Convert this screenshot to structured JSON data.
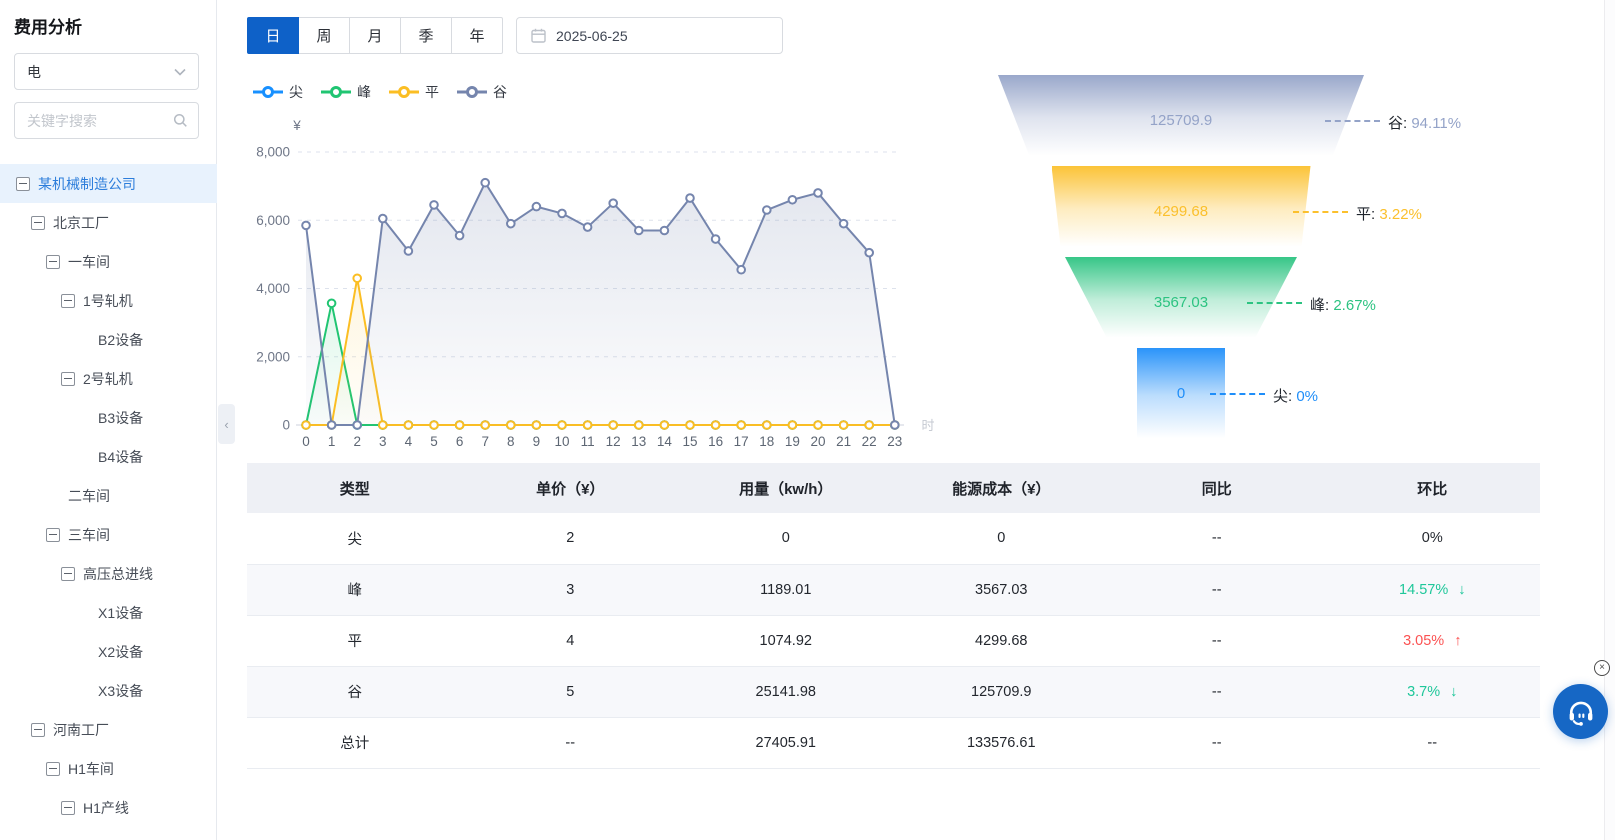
{
  "sidebar": {
    "title": "费用分析",
    "energy_select": {
      "value": "电"
    },
    "search": {
      "placeholder": "关键字搜索"
    },
    "tree": [
      {
        "label": "某机械制造公司",
        "level": 0,
        "expandable": true,
        "selected": true
      },
      {
        "label": "北京工厂",
        "level": 1,
        "expandable": true,
        "selected": false
      },
      {
        "label": "一车间",
        "level": 2,
        "expandable": true,
        "selected": false
      },
      {
        "label": "1号轧机",
        "level": 3,
        "expandable": true,
        "selected": false
      },
      {
        "label": "B2设备",
        "level": 4,
        "expandable": false,
        "selected": false
      },
      {
        "label": "2号轧机",
        "level": 3,
        "expandable": true,
        "selected": false
      },
      {
        "label": "B3设备",
        "level": 4,
        "expandable": false,
        "selected": false
      },
      {
        "label": "B4设备",
        "level": 4,
        "expandable": false,
        "selected": false
      },
      {
        "label": "二车间",
        "level": 2,
        "expandable": false,
        "selected": false
      },
      {
        "label": "三车间",
        "level": 2,
        "expandable": true,
        "selected": false
      },
      {
        "label": "高压总进线",
        "level": 3,
        "expandable": true,
        "selected": false
      },
      {
        "label": "X1设备",
        "level": 4,
        "expandable": false,
        "selected": false
      },
      {
        "label": "X2设备",
        "level": 4,
        "expandable": false,
        "selected": false
      },
      {
        "label": "X3设备",
        "level": 4,
        "expandable": false,
        "selected": false
      },
      {
        "label": "河南工厂",
        "level": 1,
        "expandable": true,
        "selected": false
      },
      {
        "label": "H1车间",
        "level": 2,
        "expandable": true,
        "selected": false
      },
      {
        "label": "H1产线",
        "level": 3,
        "expandable": true,
        "selected": false
      }
    ]
  },
  "toolbar": {
    "period_tabs": [
      "日",
      "周",
      "月",
      "季",
      "年"
    ],
    "active_tab": "日",
    "date_value": "2025-06-25"
  },
  "chart_data": [
    {
      "type": "line",
      "title": "",
      "xlabel": "时",
      "ylabel": "¥",
      "ylim": [
        0,
        8000
      ],
      "yticks": [
        0,
        2000,
        4000,
        6000,
        8000
      ],
      "grid": true,
      "legend_position": "top",
      "x": [
        0,
        1,
        2,
        3,
        4,
        5,
        6,
        7,
        8,
        9,
        10,
        11,
        12,
        13,
        14,
        15,
        16,
        17,
        18,
        19,
        20,
        21,
        22,
        23
      ],
      "series": [
        {
          "name": "尖",
          "color": "#1890ff",
          "values": [
            0,
            0,
            0,
            0,
            0,
            0,
            0,
            0,
            0,
            0,
            0,
            0,
            0,
            0,
            0,
            0,
            0,
            0,
            0,
            0,
            0,
            0,
            0,
            0
          ]
        },
        {
          "name": "峰",
          "color": "#20c572",
          "values": [
            0,
            3567.03,
            0,
            0,
            0,
            0,
            0,
            0,
            0,
            0,
            0,
            0,
            0,
            0,
            0,
            0,
            0,
            0,
            0,
            0,
            0,
            0,
            0,
            0
          ]
        },
        {
          "name": "平",
          "color": "#fbbe23",
          "values": [
            0,
            0,
            4299.68,
            0,
            0,
            0,
            0,
            0,
            0,
            0,
            0,
            0,
            0,
            0,
            0,
            0,
            0,
            0,
            0,
            0,
            0,
            0,
            0,
            0
          ]
        },
        {
          "name": "谷",
          "color": "#7585ad",
          "values": [
            5850,
            0,
            0,
            6050,
            5100,
            6450,
            5550,
            7100,
            5900,
            6400,
            6200,
            5800,
            6500,
            5700,
            5700,
            6650,
            5450,
            4550,
            6300,
            6600,
            6800,
            5900,
            5050,
            0
          ]
        }
      ]
    },
    {
      "type": "funnel",
      "title": "",
      "items": [
        {
          "name": "谷",
          "value": "125709.9",
          "percent": "94.11%",
          "color": "#94a3c8"
        },
        {
          "name": "平",
          "value": "4299.68",
          "percent": "3.22%",
          "color": "#fbc02d"
        },
        {
          "name": "峰",
          "value": "3567.03",
          "percent": "2.67%",
          "color": "#2cc381"
        },
        {
          "name": "尖",
          "value": "0",
          "percent": "0%",
          "color": "#1f8ef9"
        }
      ]
    }
  ],
  "table": {
    "headers": [
      "类型",
      "单价（¥）",
      "用量（kw/h）",
      "能源成本（¥）",
      "同比",
      "环比"
    ],
    "rows": [
      {
        "type": "尖",
        "price": "2",
        "usage": "0",
        "cost": "0",
        "yoy": "--",
        "mom": "0%",
        "trend": null
      },
      {
        "type": "峰",
        "price": "3",
        "usage": "1189.01",
        "cost": "3567.03",
        "yoy": "--",
        "mom": "14.57%",
        "trend": "down"
      },
      {
        "type": "平",
        "price": "4",
        "usage": "1074.92",
        "cost": "4299.68",
        "yoy": "--",
        "mom": "3.05%",
        "trend": "up"
      },
      {
        "type": "谷",
        "price": "5",
        "usage": "25141.98",
        "cost": "125709.9",
        "yoy": "--",
        "mom": "3.7%",
        "trend": "down"
      },
      {
        "type": "总计",
        "price": "--",
        "usage": "27405.91",
        "cost": "133576.61",
        "yoy": "--",
        "mom": "--",
        "trend": null
      }
    ],
    "trend_up_color": "#fb5252",
    "trend_down_color": "#1fc79a"
  },
  "colors": {
    "accent_blue": "#0e61c8",
    "tree_selected_bg": "#e8f2fd",
    "tree_selected_text": "#2c7ddb",
    "table_header_bg": "#eef0f5",
    "fab_blue": "#1667c5"
  },
  "icons": {
    "select": "chevron-down",
    "search": "magnifier",
    "date": "calendar",
    "sidebar_handle": "chevron-left",
    "fab": "headset",
    "fab_close": "circled-x"
  },
  "fab": {
    "close_glyph": "×"
  }
}
